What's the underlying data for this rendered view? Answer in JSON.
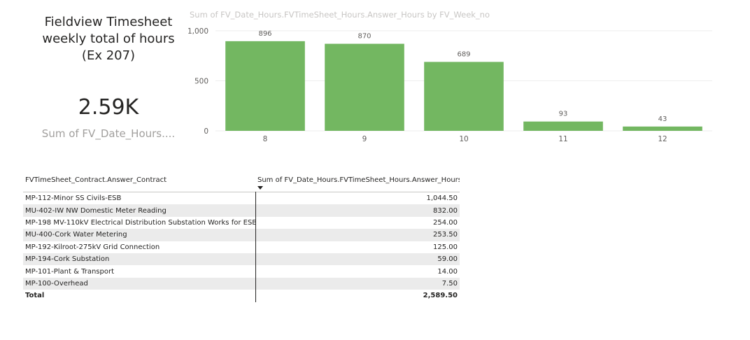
{
  "card": {
    "title_lines": [
      "Fieldview Timesheet",
      "weekly total of hours",
      "(Ex 207)"
    ],
    "value": "2.59K",
    "caption": "Sum of FV_Date_Hours...."
  },
  "chart_data": {
    "type": "bar",
    "title": "Sum of FV_Date_Hours.FVTimeSheet_Hours.Answer_Hours by FV_Week_no",
    "categories": [
      "8",
      "9",
      "10",
      "11",
      "12"
    ],
    "values": [
      896,
      870,
      689,
      93,
      43
    ],
    "data_labels": [
      "896",
      "870",
      "689",
      "93",
      "43"
    ],
    "yticks": [
      "0",
      "500",
      "1,000"
    ],
    "ylim": [
      0,
      1000
    ],
    "bar_color": "#73b761",
    "grid": true
  },
  "table": {
    "headers": [
      "FVTimeSheet_Contract.Answer_Contract",
      "Sum of FV_Date_Hours.FVTimeSheet_Hours.Answer_Hours"
    ],
    "rows": [
      {
        "contract": "MP-112-Minor SS Civils-ESB",
        "hours": "1,044.50"
      },
      {
        "contract": "MU-402-IW NW Domestic Meter Reading",
        "hours": "832.00"
      },
      {
        "contract": "MP-198 MV-110kV Electrical Distribution Substation Works for ESB",
        "hours": "254.00"
      },
      {
        "contract": "MU-400-Cork Water Metering",
        "hours": "253.50"
      },
      {
        "contract": "MP-192-Kilroot-275kV Grid Connection",
        "hours": "125.00"
      },
      {
        "contract": "MP-194-Cork Substation",
        "hours": "59.00"
      },
      {
        "contract": "MP-101-Plant & Transport",
        "hours": "14.00"
      },
      {
        "contract": "MP-100-Overhead",
        "hours": "7.50"
      }
    ],
    "total_label": "Total",
    "total_value": "2,589.50"
  }
}
